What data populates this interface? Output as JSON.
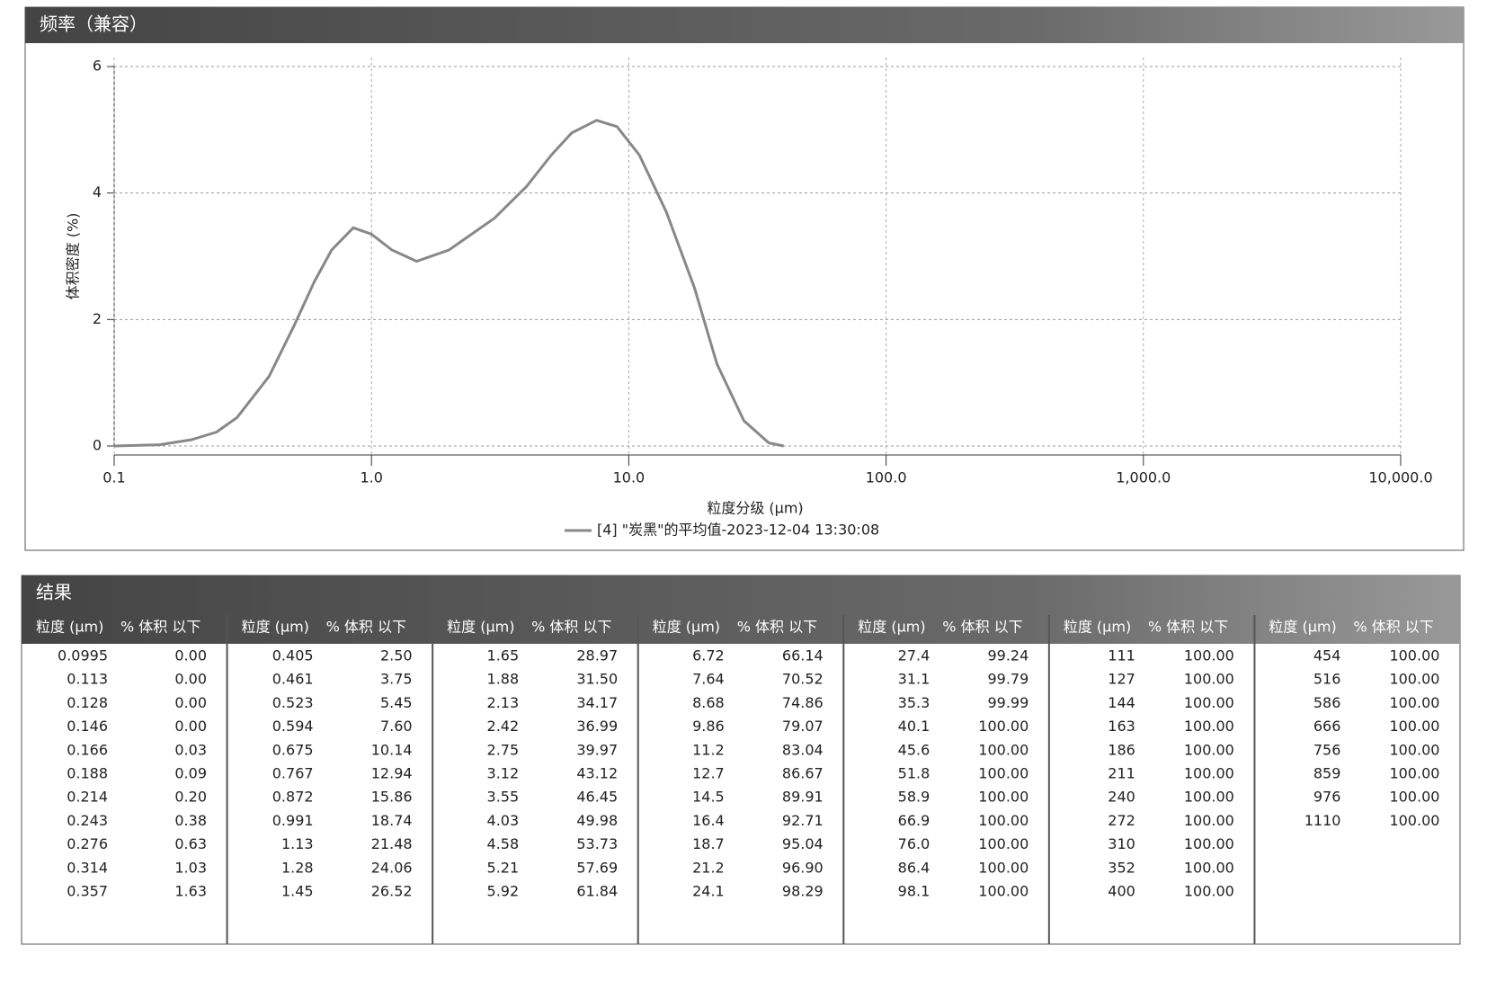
{
  "chart_data": {
    "type": "line",
    "title": "频率（兼容）",
    "ylabel": "体积密度 (%)",
    "xlabel": "粒度分级 (μm)",
    "xlog": true,
    "grid": true,
    "xlim": [
      0.1,
      10000
    ],
    "xticks": [
      0.1,
      {
        "value": 1,
        "label": "1.0"
      },
      {
        "value": 10,
        "label": "10.0"
      },
      {
        "value": 100,
        "label": "100.0"
      },
      {
        "value": 1000,
        "label": "1,000.0"
      },
      {
        "value": 10000,
        "label": "10,000.0"
      }
    ],
    "ylim": [
      0,
      6
    ],
    "yticks": [
      0,
      2,
      4,
      6
    ],
    "series": [
      {
        "name": "[4] \"炭黑\"的平均值-2023-12-04 13:30:08",
        "color": "#888888",
        "x": [
          0.1,
          0.15,
          0.2,
          0.25,
          0.3,
          0.4,
          0.5,
          0.6,
          0.7,
          0.85,
          1.0,
          1.2,
          1.5,
          2,
          3,
          4,
          5,
          6,
          7.5,
          9,
          11,
          14,
          18,
          22,
          28,
          35,
          40
        ],
        "values": [
          0,
          0.02,
          0.1,
          0.22,
          0.45,
          1.1,
          1.9,
          2.6,
          3.1,
          3.45,
          3.35,
          3.1,
          2.92,
          3.1,
          3.6,
          4.1,
          4.6,
          4.95,
          5.15,
          5.05,
          4.6,
          3.7,
          2.5,
          1.3,
          0.4,
          0.05,
          0
        ]
      }
    ]
  },
  "results": {
    "title": "结果",
    "headers": [
      "粒度 (μm)",
      "% 体积 以下"
    ],
    "groups": [
      [
        [
          "0.0995",
          "0.00"
        ],
        [
          "0.113",
          "0.00"
        ],
        [
          "0.128",
          "0.00"
        ],
        [
          "0.146",
          "0.00"
        ],
        [
          "0.166",
          "0.03"
        ],
        [
          "0.188",
          "0.09"
        ],
        [
          "0.214",
          "0.20"
        ],
        [
          "0.243",
          "0.38"
        ],
        [
          "0.276",
          "0.63"
        ],
        [
          "0.314",
          "1.03"
        ],
        [
          "0.357",
          "1.63"
        ]
      ],
      [
        [
          "0.405",
          "2.50"
        ],
        [
          "0.461",
          "3.75"
        ],
        [
          "0.523",
          "5.45"
        ],
        [
          "0.594",
          "7.60"
        ],
        [
          "0.675",
          "10.14"
        ],
        [
          "0.767",
          "12.94"
        ],
        [
          "0.872",
          "15.86"
        ],
        [
          "0.991",
          "18.74"
        ],
        [
          "1.13",
          "21.48"
        ],
        [
          "1.28",
          "24.06"
        ],
        [
          "1.45",
          "26.52"
        ]
      ],
      [
        [
          "1.65",
          "28.97"
        ],
        [
          "1.88",
          "31.50"
        ],
        [
          "2.13",
          "34.17"
        ],
        [
          "2.42",
          "36.99"
        ],
        [
          "2.75",
          "39.97"
        ],
        [
          "3.12",
          "43.12"
        ],
        [
          "3.55",
          "46.45"
        ],
        [
          "4.03",
          "49.98"
        ],
        [
          "4.58",
          "53.73"
        ],
        [
          "5.21",
          "57.69"
        ],
        [
          "5.92",
          "61.84"
        ]
      ],
      [
        [
          "6.72",
          "66.14"
        ],
        [
          "7.64",
          "70.52"
        ],
        [
          "8.68",
          "74.86"
        ],
        [
          "9.86",
          "79.07"
        ],
        [
          "11.2",
          "83.04"
        ],
        [
          "12.7",
          "86.67"
        ],
        [
          "14.5",
          "89.91"
        ],
        [
          "16.4",
          "92.71"
        ],
        [
          "18.7",
          "95.04"
        ],
        [
          "21.2",
          "96.90"
        ],
        [
          "24.1",
          "98.29"
        ]
      ],
      [
        [
          "27.4",
          "99.24"
        ],
        [
          "31.1",
          "99.79"
        ],
        [
          "35.3",
          "99.99"
        ],
        [
          "40.1",
          "100.00"
        ],
        [
          "45.6",
          "100.00"
        ],
        [
          "51.8",
          "100.00"
        ],
        [
          "58.9",
          "100.00"
        ],
        [
          "66.9",
          "100.00"
        ],
        [
          "76.0",
          "100.00"
        ],
        [
          "86.4",
          "100.00"
        ],
        [
          "98.1",
          "100.00"
        ]
      ],
      [
        [
          "111",
          "100.00"
        ],
        [
          "127",
          "100.00"
        ],
        [
          "144",
          "100.00"
        ],
        [
          "163",
          "100.00"
        ],
        [
          "186",
          "100.00"
        ],
        [
          "211",
          "100.00"
        ],
        [
          "240",
          "100.00"
        ],
        [
          "272",
          "100.00"
        ],
        [
          "310",
          "100.00"
        ],
        [
          "352",
          "100.00"
        ],
        [
          "400",
          "100.00"
        ]
      ],
      [
        [
          "454",
          "100.00"
        ],
        [
          "516",
          "100.00"
        ],
        [
          "586",
          "100.00"
        ],
        [
          "666",
          "100.00"
        ],
        [
          "756",
          "100.00"
        ],
        [
          "859",
          "100.00"
        ],
        [
          "976",
          "100.00"
        ],
        [
          "1110",
          "100.00"
        ]
      ]
    ]
  }
}
